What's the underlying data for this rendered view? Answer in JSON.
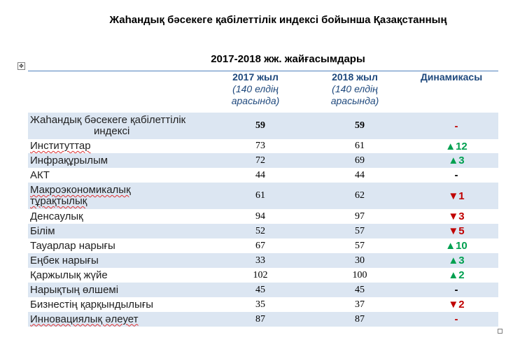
{
  "title_line1": "Жаһандық бәсекеге қабілеттілік индексі бойынша Қазақстанның",
  "title_line2": "2017-2018 жж. жайғасымдары",
  "header": {
    "col2017_year": "2017 жыл",
    "col2017_sub1": "(140 елдің",
    "col2017_sub2": "арасында)",
    "col2018_year": "2018 жыл",
    "col2018_sub1": "(140 елдің",
    "col2018_sub2": "арасында)",
    "dynamics": "Динамикасы"
  },
  "rows": [
    {
      "name1": "Жаһандық бәсекеге қабілеттілік",
      "name2": "индексі",
      "v2017": "59",
      "v2018": "59",
      "dynamics": "-",
      "trend": "dash-red"
    },
    {
      "name1": "Институттар",
      "v2017": "73",
      "v2018": "61",
      "dynamics": "▲12",
      "trend": "up"
    },
    {
      "name1": "Инфрақұрылым",
      "v2017": "72",
      "v2018": "69",
      "dynamics": "▲3",
      "trend": "up"
    },
    {
      "name1": "АКТ",
      "v2017": "44",
      "v2018": "44",
      "dynamics": "-",
      "trend": "dash-black"
    },
    {
      "name1": "Макроэкономикалық",
      "name2": "тұрақтылық",
      "v2017": "61",
      "v2018": "62",
      "dynamics": "▼1",
      "trend": "down"
    },
    {
      "name1": "Денсаулық",
      "v2017": "94",
      "v2018": "97",
      "dynamics": "▼3",
      "trend": "down"
    },
    {
      "name1": "Білім",
      "v2017": "52",
      "v2018": "57",
      "dynamics": "▼5",
      "trend": "down"
    },
    {
      "name1": "Тауарлар нарығы",
      "v2017": "67",
      "v2018": "57",
      "dynamics": "▲10",
      "trend": "up"
    },
    {
      "name1": "Еңбек нарығы",
      "v2017": "33",
      "v2018": "30",
      "dynamics": "▲3",
      "trend": "up"
    },
    {
      "name1": "Қаржылық жүйе",
      "v2017": "102",
      "v2018": "100",
      "dynamics": "▲2",
      "trend": "up"
    },
    {
      "name1": "Нарықтың өлшемі",
      "v2017": "45",
      "v2018": "45",
      "dynamics": "-",
      "trend": "dash-black"
    },
    {
      "name1": "Бизнестің қарқындылығы",
      "v2017": "35",
      "v2018": "37",
      "dynamics": "▼2",
      "trend": "down"
    },
    {
      "name1": "Инновациялық әлеует",
      "v2017": "87",
      "v2018": "87",
      "dynamics": "-",
      "trend": "dash-red"
    }
  ],
  "colors": {
    "band": "#dce6f2",
    "header_text": "#1f497d",
    "up": "#00a050",
    "down": "#c00000",
    "rule": "#4f81bd"
  },
  "icons": {
    "move_handle": "table-move-handle-icon",
    "resize_handle": "table-resize-handle-icon"
  }
}
